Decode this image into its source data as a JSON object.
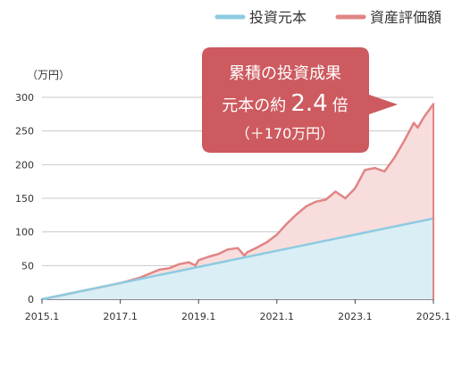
{
  "chart_data": {
    "type": "area",
    "ylabel": "（万円）",
    "ylim": [
      0,
      300
    ],
    "y_ticks": [
      "0",
      "50",
      "100",
      "150",
      "200",
      "250",
      "300"
    ],
    "x_tick_labels": [
      "2015.1",
      "2017.1",
      "2019.1",
      "2021.1",
      "2023.1",
      "2025.1"
    ],
    "x_range": [
      2015.0,
      2025.0
    ],
    "grid": true,
    "legend": {
      "position": "top-right",
      "items": [
        {
          "label": "投資元本",
          "color": "#8dcbe0"
        },
        {
          "label": "資産評価額",
          "color": "#e08585"
        }
      ]
    },
    "series": [
      {
        "name": "投資元本",
        "color": "#8dcbe0",
        "fill": "#daeef5",
        "x": [
          2015.0,
          2025.0
        ],
        "values": [
          0,
          120
        ]
      },
      {
        "name": "資産評価額",
        "color": "#e08585",
        "fill": "#f8dddd",
        "x": [
          2015.0,
          2016.0,
          2017.0,
          2017.25,
          2017.5,
          2017.75,
          2018.0,
          2018.25,
          2018.5,
          2018.75,
          2018.92,
          2019.0,
          2019.25,
          2019.5,
          2019.75,
          2020.0,
          2020.17,
          2020.25,
          2020.5,
          2020.75,
          2021.0,
          2021.25,
          2021.5,
          2021.75,
          2022.0,
          2022.25,
          2022.5,
          2022.75,
          2023.0,
          2023.25,
          2023.5,
          2023.75,
          2024.0,
          2024.25,
          2024.5,
          2024.6,
          2024.75,
          2025.0
        ],
        "values": [
          0,
          12,
          24,
          28,
          32,
          38,
          44,
          46,
          52,
          55,
          50,
          58,
          63,
          67,
          74,
          76,
          65,
          70,
          77,
          85,
          96,
          112,
          126,
          138,
          145,
          148,
          160,
          150,
          165,
          192,
          195,
          190,
          210,
          235,
          262,
          255,
          270,
          290
        ]
      }
    ],
    "callout": {
      "line1": "累積の投資成果",
      "line2_prefix": "元本の約",
      "line2_value": "2.4",
      "line2_suffix": "倍",
      "line3": "（＋170万円）",
      "color": "#cd5a5f"
    }
  }
}
